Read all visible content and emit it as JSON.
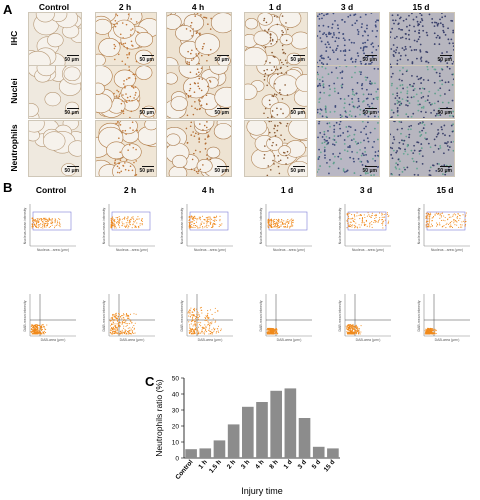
{
  "panel_a": {
    "letter": "A",
    "columns": [
      "Control",
      "2 h",
      "4 h",
      "1 d",
      "3 d",
      "15 d"
    ],
    "rows": [
      "IHC",
      "Nuclei",
      "Neutrophils"
    ],
    "scale_label": "50 μm"
  },
  "panel_b": {
    "letter": "B",
    "columns": [
      "Control",
      "2 h",
      "4 h",
      "1 d",
      "3 d",
      "15 d"
    ],
    "top_ylabel": "Nucleus-mean intensity",
    "top_xlabel": "Nucleus - area (μm²)",
    "bottom_ylabel": "DAB-mean intensity",
    "bottom_xlabel": "DAB-area (μm²)",
    "colors": {
      "dots": "#f08a1c",
      "gate": "#7c7cd8",
      "axis": "#888888"
    }
  },
  "panel_c": {
    "letter": "C"
  },
  "chart_data": {
    "type": "bar",
    "ylabel": "Neutrophils ratio (%)",
    "xlabel": "Injury time",
    "categories": [
      "Control",
      "1 h",
      "1.5 h",
      "2 h",
      "3 h",
      "4 h",
      "8 h",
      "1 d",
      "3 d",
      "5 d",
      "15 d"
    ],
    "values": [
      5.5,
      6,
      11,
      21,
      32,
      35,
      42,
      43.5,
      25,
      7,
      6
    ],
    "yticks": [
      0,
      10,
      20,
      30,
      40,
      50
    ],
    "ylim": [
      0,
      50
    ],
    "bar_color": "#8c8c8c"
  }
}
